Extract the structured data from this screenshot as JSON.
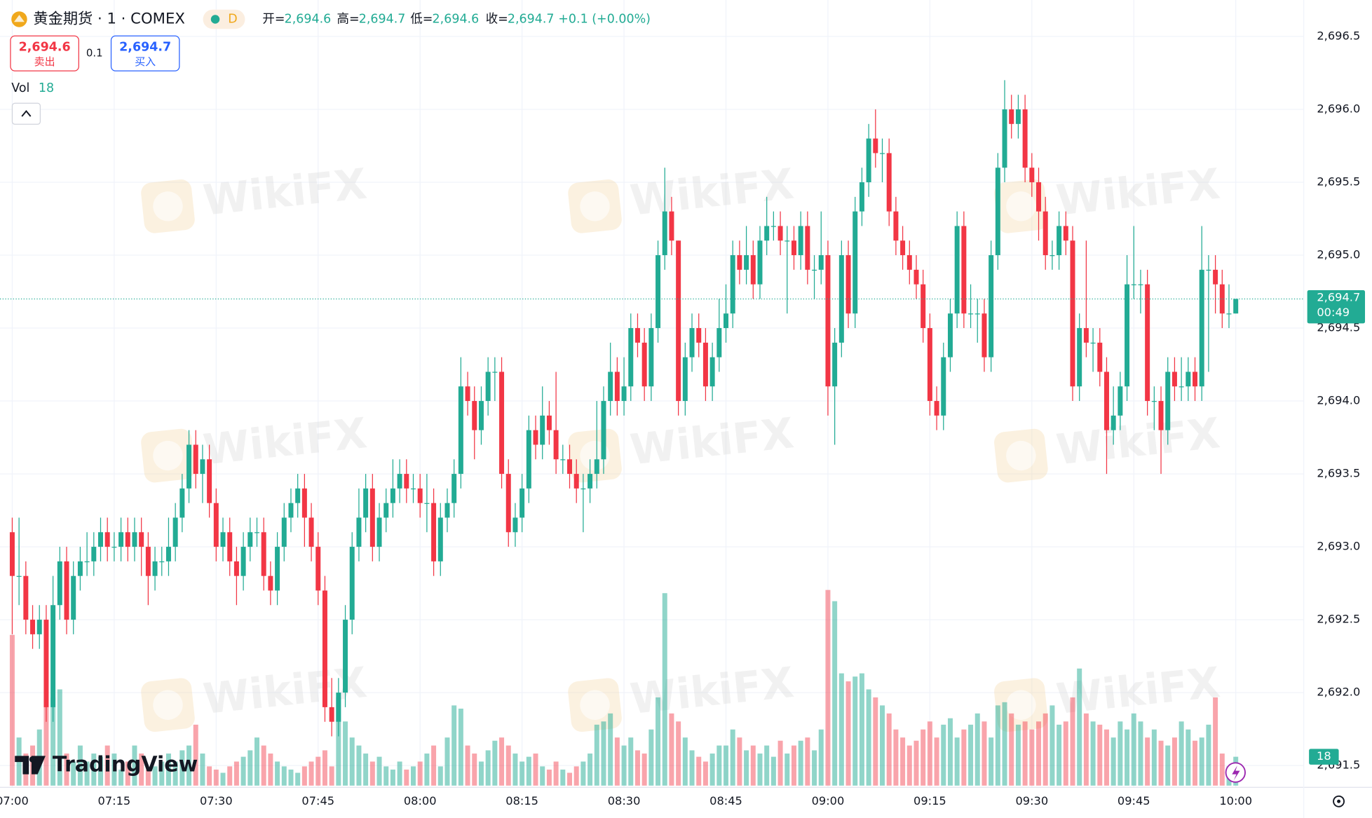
{
  "header": {
    "symbol": "黄金期货 · 1 · COMEX",
    "badge": "D",
    "ohlc": [
      {
        "label": "开=",
        "value": "2,694.6"
      },
      {
        "label": "高=",
        "value": "2,694.7"
      },
      {
        "label": "低=",
        "value": "2,694.6"
      },
      {
        "label": "收=",
        "value": "2,694.7"
      }
    ],
    "change": "+0.1 (+0.00%)",
    "sell": {
      "price": "2,694.6",
      "label": "卖出"
    },
    "spread": "0.1",
    "buy": {
      "price": "2,694.7",
      "label": "买入"
    },
    "vol_label": "Vol"
  },
  "watermark": "WikiFX",
  "brand": "TradingView",
  "chart_data": {
    "type": "candlestick",
    "up_color": "#22ab94",
    "down_color": "#f23645",
    "volume_up_color": "rgba(34,171,148,0.5)",
    "volume_down_color": "rgba(242,54,69,0.45)",
    "grid": true,
    "xlim": [
      -1.8,
      190
    ],
    "xticks": [
      {
        "value": 0,
        "label": "07:00"
      },
      {
        "value": 15,
        "label": "07:15"
      },
      {
        "value": 30,
        "label": "07:30"
      },
      {
        "value": 45,
        "label": "07:45"
      },
      {
        "value": 60,
        "label": "08:00"
      },
      {
        "value": 75,
        "label": "08:15"
      },
      {
        "value": 90,
        "label": "08:30"
      },
      {
        "value": 105,
        "label": "08:45"
      },
      {
        "value": 120,
        "label": "09:00"
      },
      {
        "value": 135,
        "label": "09:15"
      },
      {
        "value": 150,
        "label": "09:30"
      },
      {
        "value": 165,
        "label": "09:45"
      },
      {
        "value": 180,
        "label": "10:00"
      }
    ],
    "ylim": [
      2691.35,
      2696.75
    ],
    "yticks": [
      {
        "value": 2691.5,
        "label": "2,691.5"
      },
      {
        "value": 2692,
        "label": "2,692.0"
      },
      {
        "value": 2692.5,
        "label": "2,692.5"
      },
      {
        "value": 2693,
        "label": "2,693.0"
      },
      {
        "value": 2693.5,
        "label": "2,693.5"
      },
      {
        "value": 2694,
        "label": "2,694.0"
      },
      {
        "value": 2694.5,
        "label": "2,694.5"
      },
      {
        "value": 2695,
        "label": "2,695.0"
      },
      {
        "value": 2695.5,
        "label": "2,695.5"
      },
      {
        "value": 2696,
        "label": "2,696.0"
      },
      {
        "value": 2696.5,
        "label": "2,696.5"
      }
    ],
    "vlim": [
      0,
      150
    ],
    "last_price": {
      "value": 2694.7,
      "label": "2,694.7"
    },
    "countdown": "00:49",
    "open": [
      2693.1,
      2692.8,
      2692.8,
      2692.5,
      2692.4,
      2692.5,
      2691.9,
      2692.6,
      2692.9,
      2692.5,
      2692.8,
      2692.9,
      2692.9,
      2693.0,
      2693.1,
      2693.0,
      2693.0,
      2693.1,
      2693.0,
      2693.1,
      2693.0,
      2692.8,
      2692.9,
      2692.9,
      2693.0,
      2693.2,
      2693.4,
      2693.7,
      2693.5,
      2693.6,
      2693.3,
      2693.0,
      2693.1,
      2692.9,
      2692.8,
      2693.0,
      2693.1,
      2693.1,
      2692.8,
      2692.7,
      2693.0,
      2693.2,
      2693.3,
      2693.4,
      2693.2,
      2693.0,
      2692.7,
      2691.9,
      2691.8,
      2692.0,
      2692.5,
      2693.0,
      2693.2,
      2693.4,
      2693.0,
      2693.2,
      2693.3,
      2693.4,
      2693.5,
      2693.4,
      2693.4,
      2693.3,
      2693.3,
      2692.9,
      2693.2,
      2693.3,
      2693.5,
      2694.1,
      2694.0,
      2693.8,
      2694.0,
      2694.2,
      2694.2,
      2693.5,
      2693.1,
      2693.2,
      2693.4,
      2693.8,
      2693.7,
      2693.9,
      2693.8,
      2693.6,
      2693.6,
      2693.5,
      2693.4,
      2693.4,
      2693.5,
      2693.6,
      2694.0,
      2694.2,
      2694.0,
      2694.1,
      2694.5,
      2694.4,
      2694.1,
      2694.5,
      2695.0,
      2695.3,
      2695.1,
      2694.0,
      2694.3,
      2694.5,
      2694.4,
      2694.1,
      2694.3,
      2694.5,
      2694.6,
      2695.0,
      2694.9,
      2695.0,
      2694.8,
      2695.1,
      2695.2,
      2695.2,
      2695.1,
      2695.1,
      2695.0,
      2695.2,
      2694.9,
      2694.9,
      2695.0,
      2694.1,
      2694.4,
      2695.0,
      2694.6,
      2695.3,
      2695.5,
      2695.8,
      2695.7,
      2695.7,
      2695.3,
      2695.1,
      2695.0,
      2694.9,
      2694.8,
      2694.5,
      2694.0,
      2693.9,
      2694.3,
      2694.6,
      2695.2,
      2694.6,
      2694.6,
      2694.6,
      2694.3,
      2695.0,
      2695.6,
      2696.0,
      2695.9,
      2696.0,
      2695.6,
      2695.5,
      2695.3,
      2695.0,
      2695.0,
      2695.2,
      2695.1,
      2694.1,
      2694.5,
      2694.4,
      2694.4,
      2694.2,
      2693.8,
      2693.9,
      2694.1,
      2694.8,
      2694.8,
      2694.8,
      2694.0,
      2694.0,
      2693.8,
      2694.2,
      2694.1,
      2694.1,
      2694.2,
      2694.1,
      2694.9,
      2694.9,
      2694.8,
      2694.6,
      2694.6
    ],
    "high": [
      2693.2,
      2693.2,
      2692.9,
      2692.6,
      2692.6,
      2692.6,
      2692.8,
      2693.0,
      2693.0,
      2692.9,
      2693.0,
      2693.1,
      2693.1,
      2693.2,
      2693.2,
      2693.1,
      2693.2,
      2693.2,
      2693.2,
      2693.2,
      2693.1,
      2693.0,
      2693.0,
      2693.2,
      2693.3,
      2693.5,
      2693.8,
      2693.8,
      2693.7,
      2693.7,
      2693.4,
      2693.2,
      2693.2,
      2693.0,
      2693.1,
      2693.2,
      2693.2,
      2693.2,
      2692.9,
      2693.1,
      2693.3,
      2693.4,
      2693.5,
      2693.5,
      2693.3,
      2693.1,
      2692.8,
      2692.1,
      2692.1,
      2692.6,
      2693.1,
      2693.4,
      2693.5,
      2693.5,
      2693.3,
      2693.4,
      2693.6,
      2693.6,
      2693.6,
      2693.5,
      2693.5,
      2693.5,
      2693.4,
      2693.3,
      2693.4,
      2693.6,
      2694.3,
      2694.2,
      2694.1,
      2694.1,
      2694.3,
      2694.3,
      2694.3,
      2693.6,
      2693.3,
      2693.5,
      2693.9,
      2693.9,
      2694.1,
      2694.0,
      2694.2,
      2693.7,
      2693.7,
      2693.6,
      2693.5,
      2693.6,
      2694.0,
      2694.1,
      2694.4,
      2694.3,
      2694.3,
      2694.6,
      2694.6,
      2694.5,
      2694.6,
      2695.1,
      2695.6,
      2695.4,
      2695.1,
      2694.4,
      2694.6,
      2694.6,
      2694.5,
      2694.4,
      2694.7,
      2694.8,
      2695.1,
      2695.1,
      2695.2,
      2695.1,
      2695.2,
      2695.4,
      2695.3,
      2695.3,
      2695.2,
      2695.2,
      2695.3,
      2695.3,
      2695.0,
      2695.3,
      2695.1,
      2694.5,
      2695.1,
      2695.1,
      2695.4,
      2695.6,
      2695.9,
      2696.0,
      2695.8,
      2695.8,
      2695.4,
      2695.2,
      2695.1,
      2695.0,
      2694.9,
      2694.6,
      2694.1,
      2694.4,
      2694.7,
      2695.3,
      2695.3,
      2694.8,
      2694.7,
      2694.7,
      2695.1,
      2695.7,
      2696.2,
      2696.1,
      2696.1,
      2696.1,
      2695.7,
      2695.6,
      2695.4,
      2695.1,
      2695.3,
      2695.3,
      2695.2,
      2694.6,
      2695.1,
      2694.5,
      2694.5,
      2694.3,
      2694.1,
      2694.2,
      2695.0,
      2695.2,
      2694.9,
      2694.9,
      2694.1,
      2694.1,
      2694.3,
      2694.3,
      2694.3,
      2694.3,
      2694.3,
      2695.2,
      2695.0,
      2695.0,
      2694.9,
      2694.8,
      2694.7
    ],
    "low": [
      2692.4,
      2692.6,
      2692.4,
      2692.3,
      2692.3,
      2691.8,
      2691.8,
      2692.5,
      2692.4,
      2692.4,
      2692.7,
      2692.8,
      2692.8,
      2692.9,
      2692.9,
      2692.9,
      2692.9,
      2692.9,
      2692.9,
      2692.8,
      2692.6,
      2692.7,
      2692.8,
      2692.8,
      2692.9,
      2693.1,
      2693.3,
      2693.4,
      2693.3,
      2693.2,
      2692.9,
      2692.9,
      2692.8,
      2692.6,
      2692.7,
      2692.9,
      2693.0,
      2692.7,
      2692.6,
      2692.6,
      2692.9,
      2693.1,
      2693.2,
      2693.0,
      2692.9,
      2692.6,
      2691.8,
      2691.7,
      2691.7,
      2691.9,
      2692.4,
      2692.9,
      2693.1,
      2692.9,
      2692.9,
      2693.1,
      2693.2,
      2693.3,
      2693.3,
      2693.3,
      2693.2,
      2693.1,
      2692.8,
      2692.8,
      2693.1,
      2693.2,
      2693.4,
      2693.9,
      2693.6,
      2693.7,
      2693.9,
      2694.0,
      2693.4,
      2693.0,
      2693.0,
      2693.1,
      2693.3,
      2693.6,
      2693.6,
      2693.7,
      2693.5,
      2693.5,
      2693.4,
      2693.3,
      2693.1,
      2693.3,
      2693.4,
      2693.5,
      2693.9,
      2693.9,
      2693.9,
      2694.0,
      2694.3,
      2694.0,
      2694.0,
      2694.4,
      2694.9,
      2695.0,
      2693.9,
      2693.9,
      2694.2,
      2694.3,
      2694.0,
      2694.0,
      2694.2,
      2694.4,
      2694.5,
      2694.8,
      2694.8,
      2694.7,
      2694.7,
      2695.0,
      2695.1,
      2695.0,
      2694.6,
      2694.9,
      2694.9,
      2694.8,
      2694.7,
      2694.8,
      2693.9,
      2693.7,
      2694.3,
      2694.5,
      2694.5,
      2695.2,
      2695.4,
      2695.6,
      2695.5,
      2695.2,
      2695.0,
      2694.9,
      2694.8,
      2694.7,
      2694.4,
      2693.9,
      2693.8,
      2693.8,
      2694.2,
      2694.5,
      2694.5,
      2694.5,
      2694.4,
      2694.2,
      2694.2,
      2694.9,
      2695.5,
      2695.8,
      2695.8,
      2695.5,
      2695.4,
      2695.1,
      2694.9,
      2694.9,
      2694.9,
      2695.0,
      2694.0,
      2694.0,
      2694.3,
      2694.2,
      2694.1,
      2693.5,
      2693.7,
      2693.8,
      2694.0,
      2694.7,
      2694.6,
      2693.9,
      2693.8,
      2693.5,
      2693.7,
      2694.0,
      2694.0,
      2694.0,
      2694.0,
      2694.0,
      2694.2,
      2694.6,
      2694.5,
      2694.5,
      2694.6
    ],
    "close": [
      2692.8,
      2692.8,
      2692.5,
      2692.4,
      2692.5,
      2691.9,
      2692.6,
      2692.9,
      2692.5,
      2692.8,
      2692.9,
      2692.9,
      2693.0,
      2693.1,
      2693.0,
      2693.0,
      2693.1,
      2693.0,
      2693.1,
      2693.0,
      2692.8,
      2692.9,
      2692.9,
      2693.0,
      2693.2,
      2693.4,
      2693.7,
      2693.5,
      2693.6,
      2693.3,
      2693.0,
      2693.1,
      2692.9,
      2692.8,
      2693.0,
      2693.1,
      2693.1,
      2692.8,
      2692.7,
      2693.0,
      2693.2,
      2693.3,
      2693.4,
      2693.2,
      2693.0,
      2692.7,
      2691.9,
      2691.8,
      2692.0,
      2692.5,
      2693.0,
      2693.2,
      2693.4,
      2693.0,
      2693.2,
      2693.3,
      2693.4,
      2693.5,
      2693.4,
      2693.4,
      2693.3,
      2693.3,
      2692.9,
      2693.2,
      2693.3,
      2693.5,
      2694.1,
      2694.0,
      2693.8,
      2694.0,
      2694.2,
      2694.2,
      2693.5,
      2693.1,
      2693.2,
      2693.4,
      2693.8,
      2693.7,
      2693.9,
      2693.8,
      2693.6,
      2693.6,
      2693.5,
      2693.4,
      2693.4,
      2693.5,
      2693.6,
      2694.0,
      2694.2,
      2694.0,
      2694.1,
      2694.5,
      2694.4,
      2694.1,
      2694.5,
      2695.0,
      2695.3,
      2695.1,
      2694.0,
      2694.3,
      2694.5,
      2694.4,
      2694.1,
      2694.3,
      2694.5,
      2694.6,
      2695.0,
      2694.9,
      2695.0,
      2694.8,
      2695.1,
      2695.2,
      2695.2,
      2695.1,
      2695.1,
      2695.0,
      2695.2,
      2694.9,
      2694.9,
      2695.0,
      2694.1,
      2694.4,
      2695.0,
      2694.6,
      2695.3,
      2695.5,
      2695.8,
      2695.7,
      2695.7,
      2695.3,
      2695.1,
      2695.0,
      2694.9,
      2694.8,
      2694.5,
      2694.0,
      2693.9,
      2694.3,
      2694.6,
      2695.2,
      2694.6,
      2694.6,
      2694.6,
      2694.3,
      2695.0,
      2695.6,
      2696.0,
      2695.9,
      2696.0,
      2695.6,
      2695.5,
      2695.3,
      2695.0,
      2695.0,
      2695.2,
      2695.1,
      2694.1,
      2694.5,
      2694.4,
      2694.4,
      2694.2,
      2693.8,
      2693.9,
      2694.1,
      2694.8,
      2694.8,
      2694.8,
      2694.0,
      2694.0,
      2693.8,
      2694.2,
      2694.1,
      2694.1,
      2694.2,
      2694.1,
      2694.9,
      2694.9,
      2694.8,
      2694.6,
      2694.6,
      2694.7
    ],
    "volume": [
      94,
      30,
      20,
      25,
      35,
      50,
      55,
      60,
      20,
      15,
      25,
      15,
      20,
      18,
      25,
      20,
      10,
      15,
      25,
      20,
      10,
      12,
      15,
      20,
      15,
      22,
      25,
      38,
      20,
      12,
      10,
      8,
      12,
      15,
      18,
      22,
      30,
      25,
      20,
      15,
      12,
      10,
      8,
      12,
      15,
      18,
      22,
      12,
      55,
      40,
      30,
      25,
      20,
      15,
      18,
      12,
      10,
      15,
      10,
      12,
      15,
      20,
      25,
      12,
      30,
      50,
      48,
      25,
      20,
      15,
      22,
      28,
      30,
      25,
      20,
      15,
      18,
      20,
      12,
      10,
      15,
      10,
      8,
      12,
      15,
      20,
      38,
      40,
      45,
      30,
      25,
      30,
      22,
      20,
      35,
      55,
      120,
      45,
      40,
      30,
      22,
      18,
      15,
      20,
      25,
      25,
      35,
      30,
      22,
      25,
      20,
      25,
      18,
      28,
      20,
      25,
      28,
      30,
      22,
      35,
      122,
      115,
      70,
      65,
      68,
      70,
      60,
      55,
      50,
      45,
      35,
      30,
      25,
      28,
      35,
      40,
      30,
      38,
      42,
      30,
      35,
      38,
      45,
      40,
      30,
      50,
      52,
      45,
      38,
      40,
      35,
      40,
      45,
      50,
      38,
      40,
      55,
      73,
      45,
      40,
      38,
      35,
      30,
      40,
      35,
      45,
      40,
      30,
      35,
      28,
      25,
      30,
      40,
      35,
      28,
      30,
      38,
      55,
      20,
      12,
      18
    ]
  }
}
